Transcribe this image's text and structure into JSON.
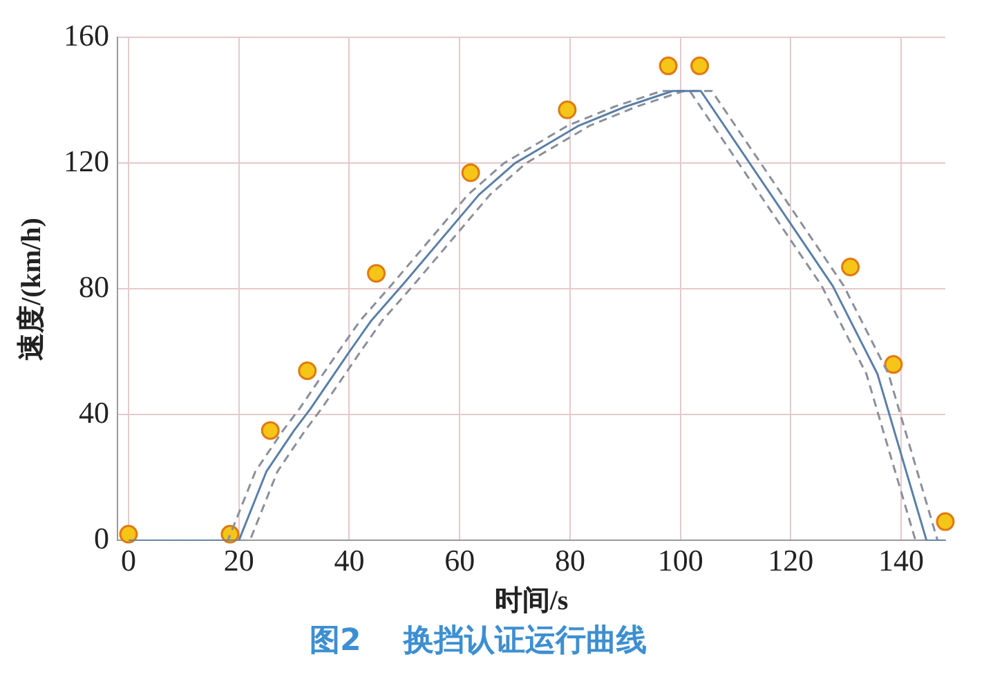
{
  "chart_data": {
    "type": "line",
    "title": "图2    换挡认证运行曲线",
    "xlabel": "时间/s",
    "ylabel": "速度/(km/h)",
    "xlim": [
      -2,
      148
    ],
    "xticks": [
      0,
      20,
      40,
      60,
      80,
      100,
      120,
      140
    ],
    "ylim": [
      0,
      160
    ],
    "yticks": [
      0,
      40,
      80,
      120,
      160
    ],
    "grid": true,
    "legend": false,
    "series": [
      {
        "color": "#5a7fa8",
        "line_style": "solid",
        "marker": "none",
        "x": [
          0,
          20,
          25,
          30,
          33,
          40,
          44,
          50,
          63.5,
          70,
          81.6,
          90,
          98.6,
          103.7,
          127.6,
          135.7,
          144.6,
          148
        ],
        "values": [
          0,
          0,
          22,
          35,
          42,
          60,
          70,
          82,
          110,
          120,
          132,
          138,
          143,
          143,
          81,
          53,
          0,
          0
        ]
      },
      {
        "color": "#8a8f9a",
        "line_style": "dashed",
        "marker": "none",
        "x": [
          0,
          18,
          23,
          28,
          31,
          38,
          42,
          48,
          61.5,
          68,
          79.6,
          88,
          96.6,
          105.7,
          129.6,
          137.7,
          146.6,
          148
        ],
        "values": [
          0,
          0,
          22,
          35,
          42,
          60,
          70,
          82,
          110,
          120,
          132,
          138,
          143,
          143,
          81,
          53,
          0,
          0
        ]
      },
      {
        "color": "#8a8f9a",
        "line_style": "dashed",
        "marker": "none",
        "x": [
          0,
          22,
          27,
          32,
          35,
          42,
          46,
          52,
          65.5,
          72,
          83.6,
          92,
          100.6,
          101.7,
          125.6,
          133.7,
          142.6,
          148
        ],
        "values": [
          0,
          0,
          22,
          35,
          42,
          60,
          70,
          82,
          110,
          120,
          132,
          138,
          143,
          143,
          81,
          53,
          0,
          0
        ]
      },
      {
        "type": "scatter",
        "color": "#f5c518",
        "marker": "circle",
        "x": [
          0,
          18.4,
          25.7,
          32.4,
          44.9,
          62,
          79.5,
          97.8,
          103.5,
          130.8,
          138.6,
          148
        ],
        "values": [
          2,
          2,
          35,
          54,
          85,
          117,
          137,
          151,
          151,
          87,
          56,
          6
        ]
      }
    ]
  }
}
